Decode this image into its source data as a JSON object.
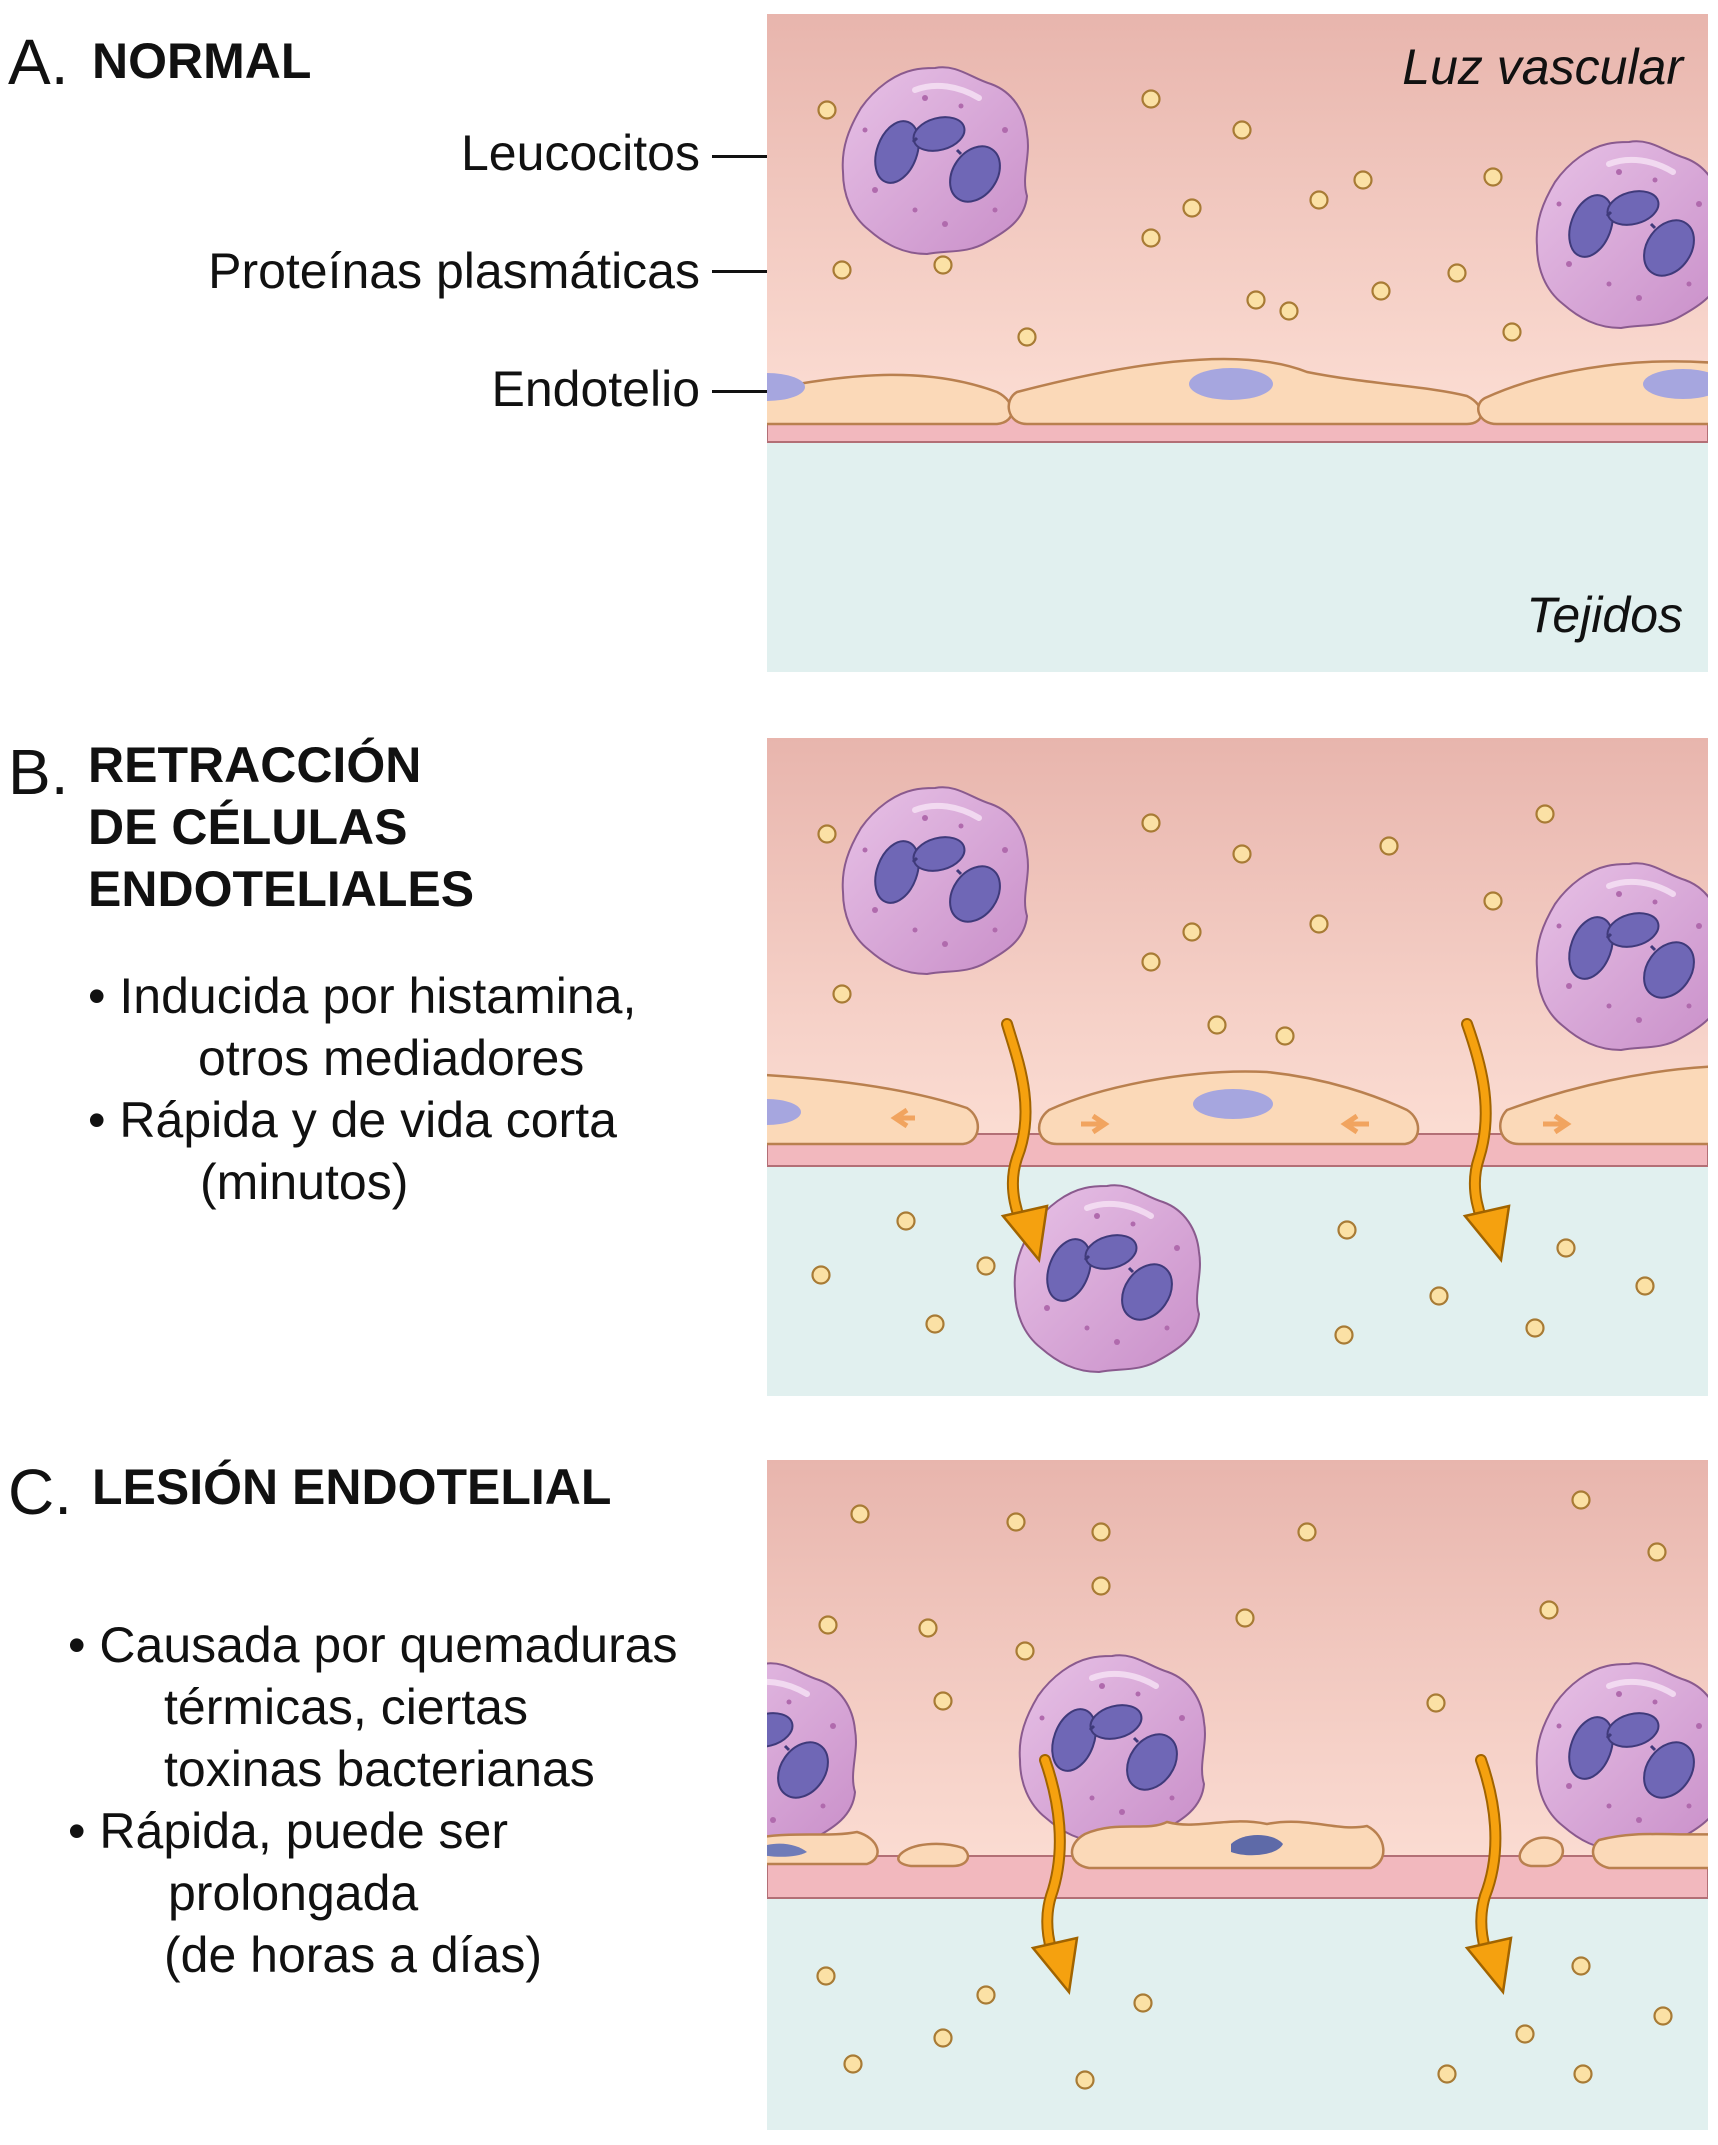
{
  "panels": {
    "a": {
      "letter": "A.",
      "title": "NORMAL",
      "labels": {
        "leukocytes": "Leucocitos",
        "plasma_proteins": "Proteínas plasmáticas",
        "endothelium": "Endotelio"
      },
      "lumen": "Luz vascular",
      "tissue": "Tejidos"
    },
    "b": {
      "letter": "B.",
      "title_lines": [
        "RETRACCIÓN",
        "DE CÉLULAS",
        "ENDOTELIALES"
      ],
      "bullets": [
        {
          "lines": [
            "• Inducida por histamina,",
            "otros mediadores"
          ]
        },
        {
          "lines": [
            "• Rápida y de vida corta",
            "(minutos)"
          ]
        }
      ]
    },
    "c": {
      "letter": "C.",
      "title": "LESIÓN ENDOTELIAL",
      "bullets": [
        {
          "lines": [
            "• Causada por quemaduras",
            "térmicas, ciertas",
            "toxinas bacterianas"
          ]
        },
        {
          "lines": [
            "• Rápida, puede ser",
            "prolongada",
            "(de horas a días)"
          ]
        }
      ]
    }
  },
  "colors": {
    "lumen_top": "#e8b5ad",
    "lumen_bottom": "#fde0d6",
    "tissue": "#e1f0ef",
    "endothelial_cell": "#fbd9b8",
    "basement_membrane": "#f2b8be",
    "leukocyte_cytoplasm": "#d9a6d8",
    "leukocyte_nucleus": "#6f67b6",
    "plasma_protein": "#fbe1a5",
    "arrow": "#f5a10f"
  },
  "icons": {
    "leukocyte": "leukocyte-icon",
    "protein": "protein-dot-icon",
    "arrow": "leak-arrow-icon"
  }
}
